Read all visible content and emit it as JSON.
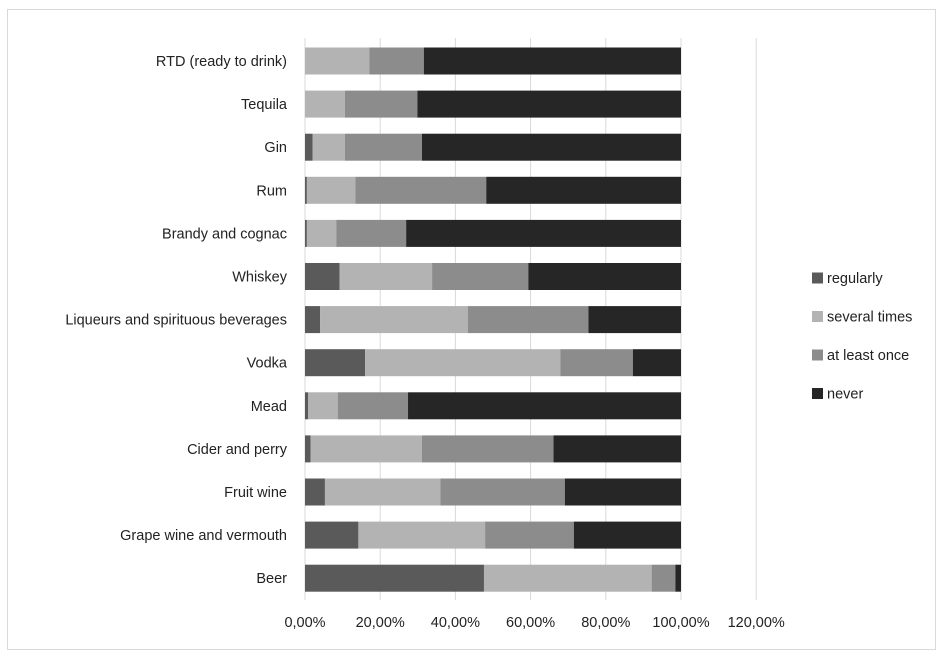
{
  "chart_data": {
    "type": "bar",
    "orientation": "horizontal",
    "stacked": true,
    "title": "",
    "xlabel": "",
    "ylabel": "",
    "xlim": [
      0,
      120
    ],
    "x_ticks": [
      "0,00%",
      "20,00%",
      "40,00%",
      "60,00%",
      "80,00%",
      "100,00%",
      "120,00%"
    ],
    "grid": "vertical",
    "legend_position": "right",
    "categories": [
      "RTD (ready to drink)",
      "Tequila",
      "Gin",
      "Rum",
      "Brandy and cognac",
      "Whiskey",
      "Liqueurs and spirituous beverages",
      "Vodka",
      "Mead",
      "Cider and perry",
      "Fruit wine",
      "Grape wine and vermouth",
      "Beer"
    ],
    "series": [
      {
        "name": "regularly",
        "color": "#5a5a5a",
        "values": [
          0.0,
          0.0,
          2.0,
          0.5,
          0.5,
          9.2,
          4.0,
          16.0,
          0.8,
          1.5,
          5.3,
          14.2,
          47.6
        ]
      },
      {
        "name": "several times",
        "color": "#b3b3b3",
        "values": [
          17.1,
          10.6,
          8.6,
          12.9,
          7.8,
          24.6,
          39.3,
          51.9,
          7.9,
          29.6,
          30.7,
          33.7,
          44.6
        ]
      },
      {
        "name": "at least once",
        "color": "#8c8c8c",
        "values": [
          14.5,
          19.3,
          20.5,
          34.8,
          18.6,
          25.6,
          32.1,
          19.3,
          18.7,
          35.0,
          33.1,
          23.6,
          6.3
        ]
      },
      {
        "name": "never",
        "color": "#262626",
        "values": [
          68.4,
          70.1,
          68.9,
          51.8,
          73.1,
          40.6,
          24.6,
          12.8,
          72.6,
          33.9,
          30.9,
          28.5,
          1.5
        ]
      }
    ]
  }
}
